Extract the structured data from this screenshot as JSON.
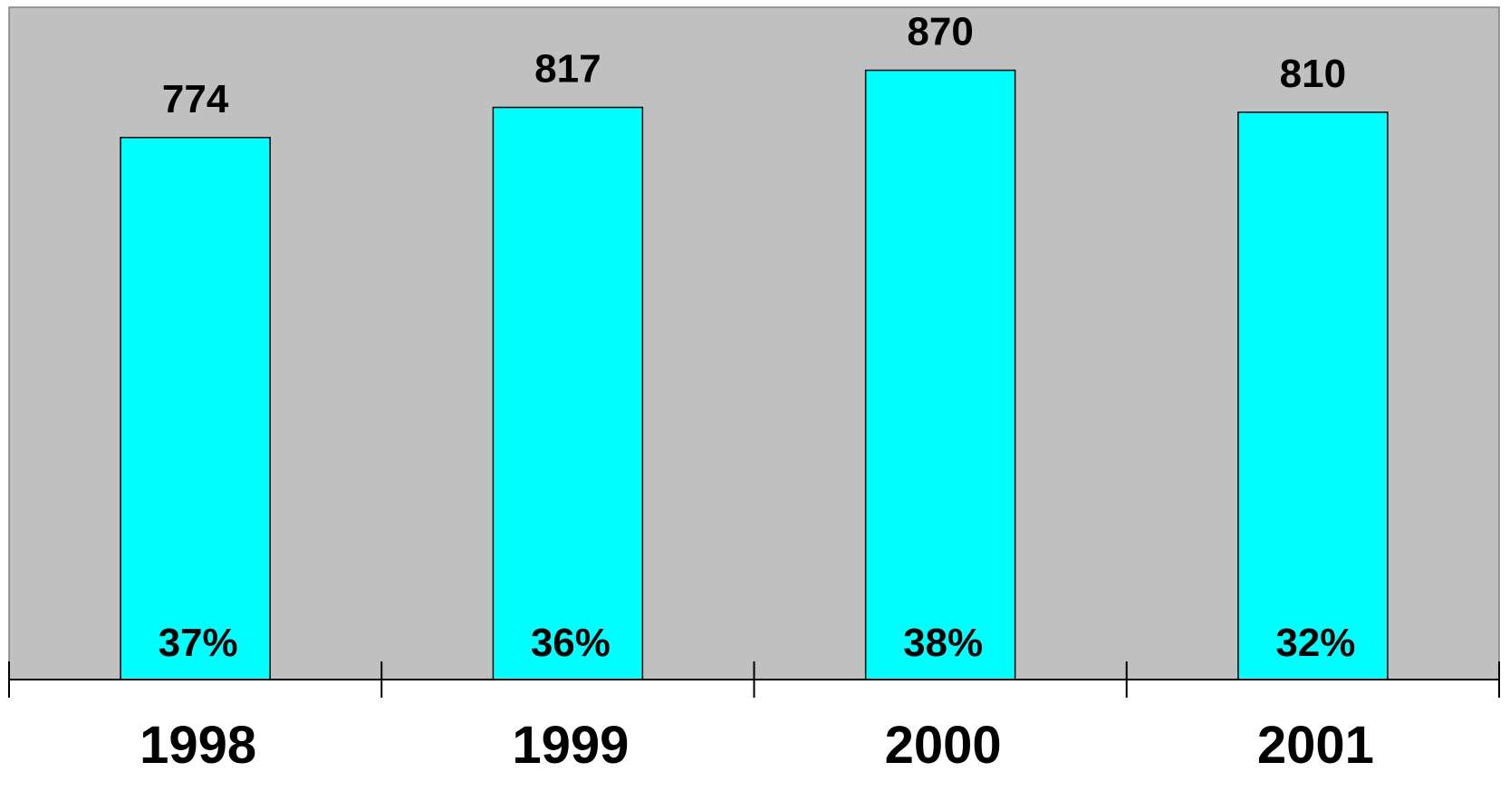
{
  "chart_data": {
    "type": "bar",
    "categories": [
      "1998",
      "1999",
      "2000",
      "2001"
    ],
    "values": [
      774,
      817,
      870,
      810
    ],
    "percent_labels": [
      "37%",
      "36%",
      "38%",
      "32%"
    ],
    "title": "",
    "xlabel": "",
    "ylabel": "",
    "ylim": [
      0,
      960
    ],
    "grid": false,
    "legend": "none",
    "colors": {
      "plot_background": "#c0c0c0",
      "bar_fill": "#00ffff",
      "bar_stroke": "#000000"
    }
  }
}
